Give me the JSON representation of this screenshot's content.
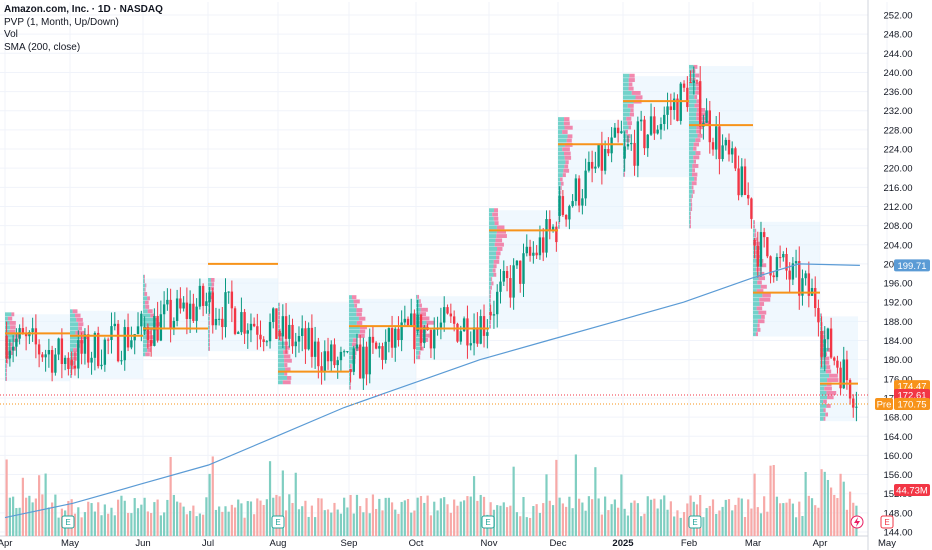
{
  "legend": {
    "title": "Amazon.com, Inc. · 1D · NASDAQ",
    "pvp": "PVP (1, Month, Up/Down)",
    "vol": "Vol",
    "sma": "SMA (200, close)"
  },
  "chart_data": {
    "type": "candlestick",
    "symbol": "Amazon.com, Inc.",
    "interval": "1D",
    "exchange": "NASDAQ",
    "y_ticks": [
      144,
      148,
      152,
      156,
      160,
      164,
      168,
      172,
      176,
      180,
      184,
      188,
      192,
      196,
      200,
      204,
      208,
      212,
      216,
      220,
      224,
      228,
      232,
      236,
      240,
      244,
      248,
      252
    ],
    "ylim": [
      143,
      253
    ],
    "x_labels": [
      {
        "label": "Apr",
        "month": 0
      },
      {
        "label": "May",
        "month": 1
      },
      {
        "label": "Jun",
        "month": 2
      },
      {
        "label": "Jul",
        "month": 3
      },
      {
        "label": "Aug",
        "month": 4
      },
      {
        "label": "Sep",
        "month": 5
      },
      {
        "label": "Oct",
        "month": 6
      },
      {
        "label": "Nov",
        "month": 7
      },
      {
        "label": "Dec",
        "month": 8
      },
      {
        "label": "2025",
        "month": 9,
        "bold": true
      },
      {
        "label": "Feb",
        "month": 10
      },
      {
        "label": "Mar",
        "month": 11
      },
      {
        "label": "Apr",
        "month": 12
      },
      {
        "label": "May",
        "month": 13
      }
    ],
    "monthly_trend": [
      {
        "month": 0,
        "open": 185,
        "close": 180
      },
      {
        "month": 1,
        "open": 180,
        "close": 186
      },
      {
        "month": 2,
        "open": 186,
        "close": 192
      },
      {
        "month": 3,
        "open": 192,
        "close": 186
      },
      {
        "month": 4,
        "open": 186,
        "close": 178
      },
      {
        "month": 5,
        "open": 178,
        "close": 186
      },
      {
        "month": 6,
        "open": 186,
        "close": 188
      },
      {
        "month": 7,
        "open": 190,
        "close": 208
      },
      {
        "month": 8,
        "open": 210,
        "close": 226
      },
      {
        "month": 9,
        "open": 222,
        "close": 236
      },
      {
        "month": 10,
        "open": 238,
        "close": 212
      },
      {
        "month": 11,
        "open": 205,
        "close": 192
      },
      {
        "month": 12,
        "open": 186,
        "close": 173
      }
    ],
    "monthly_poc": [
      {
        "month": 0,
        "price": 185.5
      },
      {
        "month": 1,
        "price": 185
      },
      {
        "month": 2,
        "price": 186.5
      },
      {
        "month": 3,
        "price": 200
      },
      {
        "month": 4,
        "price": 177.5
      },
      {
        "month": 5,
        "price": 187
      },
      {
        "month": 6,
        "price": 186.5
      },
      {
        "month": 7,
        "price": 207
      },
      {
        "month": 8,
        "price": 225
      },
      {
        "month": 9,
        "price": 234
      },
      {
        "month": 10,
        "price": 229
      },
      {
        "month": 11,
        "price": 194
      },
      {
        "month": 12,
        "price": 175
      }
    ],
    "sma_200": [
      {
        "t": 0,
        "v": 147
      },
      {
        "t": 1,
        "v": 150
      },
      {
        "t": 2,
        "v": 154
      },
      {
        "t": 3,
        "v": 158
      },
      {
        "t": 4,
        "v": 164
      },
      {
        "t": 5,
        "v": 170
      },
      {
        "t": 6,
        "v": 175
      },
      {
        "t": 7,
        "v": 180
      },
      {
        "t": 8,
        "v": 184
      },
      {
        "t": 9,
        "v": 188
      },
      {
        "t": 10,
        "v": 192
      },
      {
        "t": 11,
        "v": 197
      },
      {
        "t": 11.7,
        "v": 200
      },
      {
        "t": 12.6,
        "v": 199.7
      }
    ],
    "volume_badge": "44.73M",
    "price_badges": [
      {
        "label": "199.71",
        "value": 199.71,
        "color": "#5b9bd5"
      },
      {
        "label": "174.47",
        "value": 174.47,
        "color": "#f7931a"
      },
      {
        "label": "172.61",
        "value": 172.61,
        "color": "#f23645"
      },
      {
        "label": "170.75",
        "value": 170.75,
        "color": "#f7931a",
        "prefix": "Pre"
      }
    ],
    "earnings_markers": [
      "E",
      "E",
      "E",
      "E",
      "E"
    ],
    "colors": {
      "up": "#089981",
      "down": "#f23645",
      "volume_up": "#7fcec1",
      "volume_down": "#f7a9a7",
      "poc": "#f7931a",
      "sma": "#5b9bd5",
      "profile_bg": "#e3f2fd"
    }
  }
}
